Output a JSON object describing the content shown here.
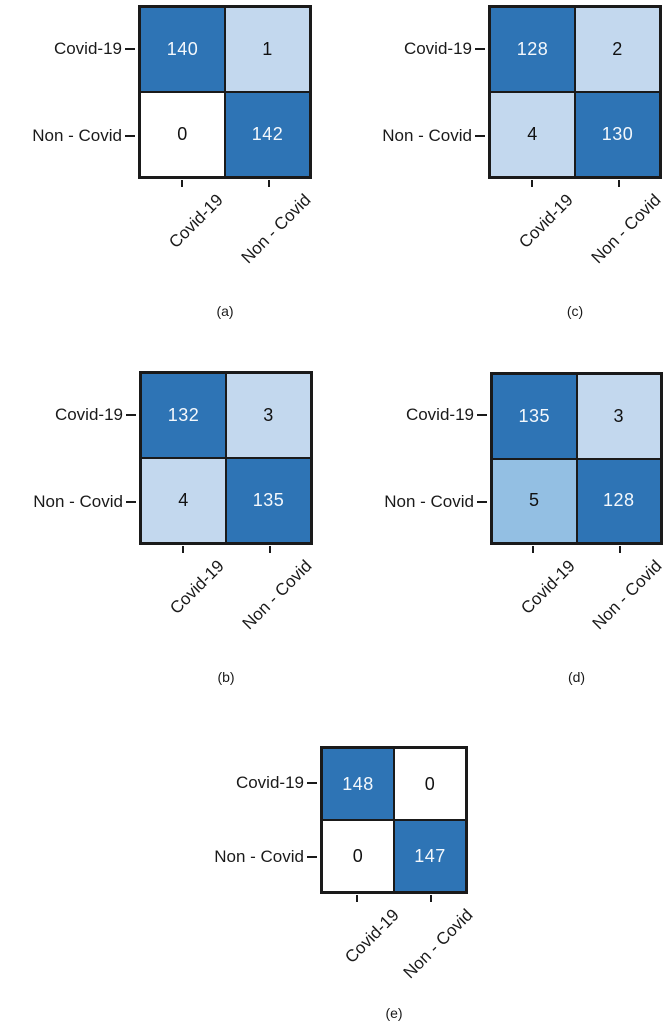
{
  "figure": {
    "colors": {
      "diagonal_blue": "#2e74b5",
      "light_blue": "#c3d8ee",
      "medium_blue": "#93bfe3",
      "empty_white": "#ffffff",
      "grid_border": "#1a1a1a"
    },
    "matrices": [
      {
        "caption": "(a)",
        "row_labels": [
          "Covid-19",
          "Non - Covid"
        ],
        "col_labels": [
          "Covid-19",
          "Non - Covid"
        ],
        "values": [
          [
            "140",
            "1"
          ],
          [
            "0",
            "142"
          ]
        ]
      },
      {
        "caption": "(b)",
        "row_labels": [
          "Covid-19",
          "Non - Covid"
        ],
        "col_labels": [
          "Covid-19",
          "Non - Covid"
        ],
        "values": [
          [
            "132",
            "3"
          ],
          [
            "4",
            "135"
          ]
        ]
      },
      {
        "caption": "(c)",
        "row_labels": [
          "Covid-19",
          "Non - Covid"
        ],
        "col_labels": [
          "Covid-19",
          "Non - Covid"
        ],
        "values": [
          [
            "128",
            "2"
          ],
          [
            "4",
            "130"
          ]
        ]
      },
      {
        "caption": "(d)",
        "row_labels": [
          "Covid-19",
          "Non - Covid"
        ],
        "col_labels": [
          "Covid-19",
          "Non - Covid"
        ],
        "values": [
          [
            "135",
            "3"
          ],
          [
            "5",
            "128"
          ]
        ]
      },
      {
        "caption": "(e)",
        "row_labels": [
          "Covid-19",
          "Non - Covid"
        ],
        "col_labels": [
          "Covid-19",
          "Non - Covid"
        ],
        "values": [
          [
            "148",
            "0"
          ],
          [
            "0",
            "147"
          ]
        ]
      }
    ]
  },
  "chart_data": [
    {
      "type": "heatmap",
      "title": "(a)",
      "x_labels": [
        "Covid-19",
        "Non - Covid"
      ],
      "y_labels": [
        "Covid-19",
        "Non - Covid"
      ],
      "values": [
        [
          140,
          1
        ],
        [
          0,
          142
        ]
      ],
      "legend_position": "none",
      "grid": false
    },
    {
      "type": "heatmap",
      "title": "(b)",
      "x_labels": [
        "Covid-19",
        "Non - Covid"
      ],
      "y_labels": [
        "Covid-19",
        "Non - Covid"
      ],
      "values": [
        [
          132,
          3
        ],
        [
          4,
          135
        ]
      ],
      "legend_position": "none",
      "grid": false
    },
    {
      "type": "heatmap",
      "title": "(c)",
      "x_labels": [
        "Covid-19",
        "Non - Covid"
      ],
      "y_labels": [
        "Covid-19",
        "Non - Covid"
      ],
      "values": [
        [
          128,
          2
        ],
        [
          4,
          130
        ]
      ],
      "legend_position": "none",
      "grid": false
    },
    {
      "type": "heatmap",
      "title": "(d)",
      "x_labels": [
        "Covid-19",
        "Non - Covid"
      ],
      "y_labels": [
        "Covid-19",
        "Non - Covid"
      ],
      "values": [
        [
          135,
          3
        ],
        [
          5,
          128
        ]
      ],
      "legend_position": "none",
      "grid": false
    },
    {
      "type": "heatmap",
      "title": "(e)",
      "x_labels": [
        "Covid-19",
        "Non - Covid"
      ],
      "y_labels": [
        "Covid-19",
        "Non - Covid"
      ],
      "values": [
        [
          148,
          0
        ],
        [
          0,
          147
        ]
      ],
      "legend_position": "none",
      "grid": false
    }
  ]
}
